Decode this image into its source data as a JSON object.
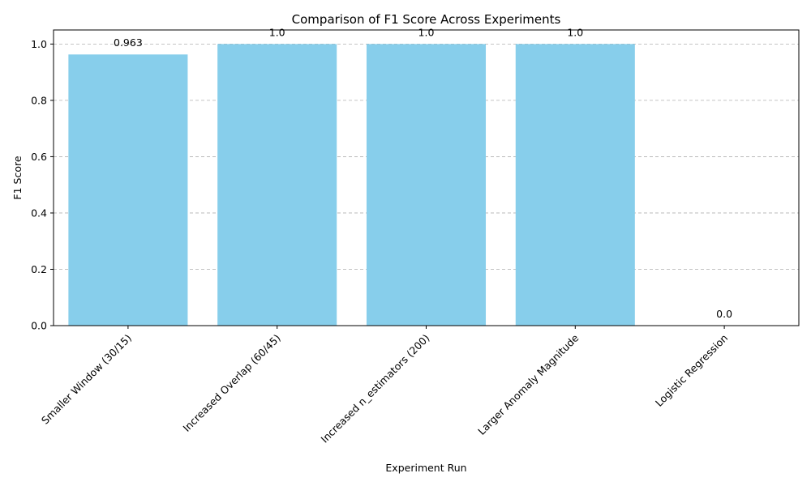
{
  "chart_data": {
    "type": "bar",
    "title": "Comparison of F1 Score Across Experiments",
    "xlabel": "Experiment Run",
    "ylabel": "F1 Score",
    "categories": [
      "Smaller Window (30/15)",
      "Increased Overlap (60/45)",
      "Increased n_estimators (200)",
      "Larger Anomaly Magnitude",
      "Logistic Regression"
    ],
    "values": [
      0.963,
      1.0,
      1.0,
      1.0,
      0.0
    ],
    "data_labels": [
      "0.963",
      "1.0",
      "1.0",
      "1.0",
      "0.0"
    ],
    "ylim": [
      0,
      1.05
    ],
    "yticks": [
      0.0,
      0.2,
      0.4,
      0.6,
      0.8,
      1.0
    ],
    "ytick_labels": [
      "0.0",
      "0.2",
      "0.4",
      "0.6",
      "0.8",
      "1.0"
    ],
    "grid": "y-dashed",
    "bar_color": "#87CEEB"
  }
}
